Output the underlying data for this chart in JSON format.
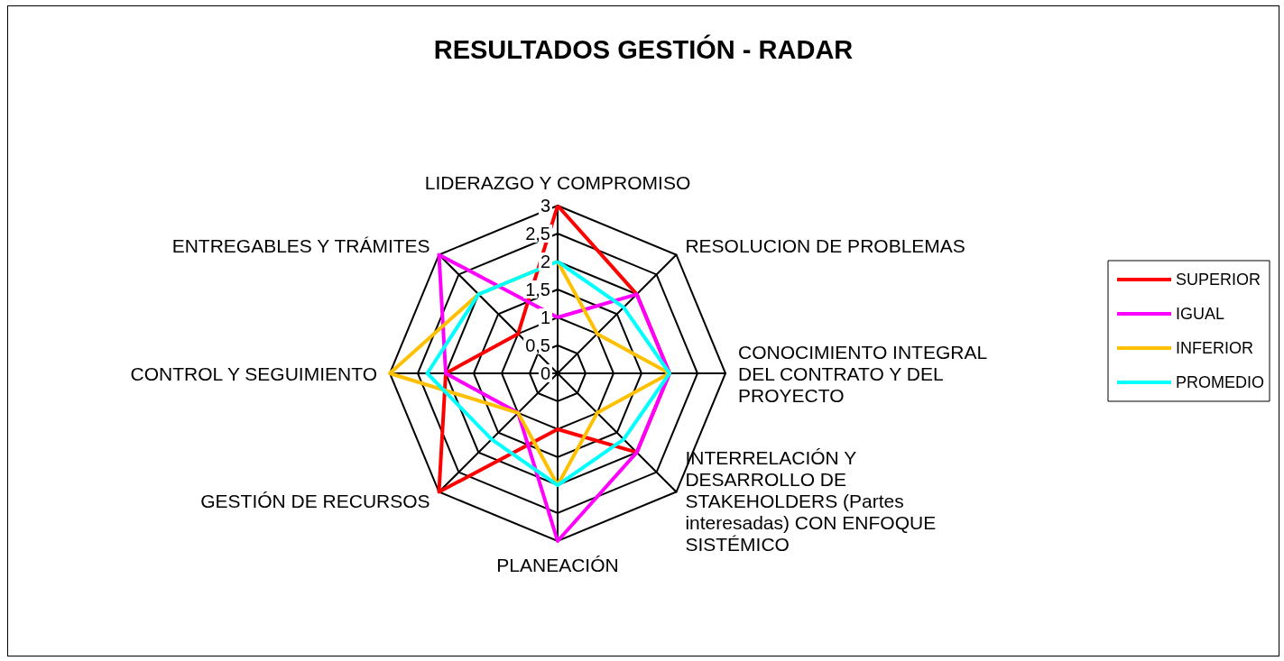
{
  "chart_data": {
    "type": "radar",
    "title": "RESULTADOS GESTIÓN - RADAR",
    "categories": [
      "LIDERAZGO Y COMPROMISO",
      "RESOLUCION DE PROBLEMAS",
      "CONOCIMIENTO INTEGRAL DEL CONTRATO Y DEL PROYECTO",
      "INTERRELACIÓN Y DESARROLLO DE STAKEHOLDERS (Partes interesadas) CON ENFOQUE SISTÉMICO",
      "PLANEACIÓN",
      "GESTIÓN DE RECURSOS",
      "CONTROL Y SEGUIMIENTO",
      "ENTREGABLES Y TRÁMITES"
    ],
    "series": [
      {
        "name": "SUPERIOR",
        "color": "#ff0000",
        "values": [
          3,
          2,
          2,
          2,
          1,
          3,
          2,
          1
        ]
      },
      {
        "name": "IGUAL",
        "color": "#ff00ff",
        "values": [
          1,
          2,
          2,
          2,
          3,
          1,
          2,
          3
        ]
      },
      {
        "name": "INFERIOR",
        "color": "#ffc000",
        "values": [
          2,
          1,
          2,
          1,
          2,
          1,
          3,
          2
        ]
      },
      {
        "name": "PROMEDIO",
        "color": "#00ffff",
        "values": [
          2,
          1.67,
          2,
          1.67,
          2,
          1.67,
          2.33,
          2
        ]
      }
    ],
    "ylim": [
      0,
      3
    ],
    "yticks": [
      0,
      {
        "value": 0.5,
        "label": "0,5"
      },
      1,
      {
        "value": 1.5,
        "label": "1,5"
      },
      2,
      {
        "value": 2.5,
        "label": "2,5"
      },
      3
    ],
    "legend": "right",
    "marker": "none",
    "line_style": "solid"
  }
}
